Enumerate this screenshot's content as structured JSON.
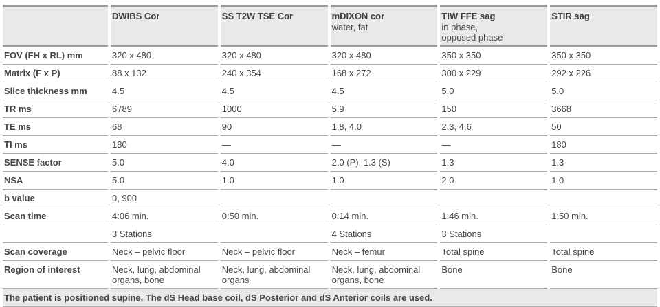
{
  "table": {
    "columns": [
      {
        "title": "",
        "subtitle": ""
      },
      {
        "title": "DWIBS Cor",
        "subtitle": ""
      },
      {
        "title": "SS T2W TSE Cor",
        "subtitle": ""
      },
      {
        "title": "mDIXON cor",
        "subtitle": "water, fat"
      },
      {
        "title": "TIW FFE sag",
        "subtitle": "in phase,\nopposed phase"
      },
      {
        "title": "STIR sag",
        "subtitle": ""
      }
    ],
    "rows": [
      {
        "label": "FOV (FH x RL) mm",
        "values": [
          "320 x 480",
          "320 x 480",
          "320 x 480",
          "350 x 350",
          "350 x 350"
        ]
      },
      {
        "label": "Matrix (F x P)",
        "values": [
          "88 x 132",
          "240 x 354",
          "168 x 272",
          "300 x 229",
          "292 x 226"
        ]
      },
      {
        "label": "Slice thickness mm",
        "values": [
          "4.5",
          "4.5",
          "4.5",
          "5.0",
          "5.0"
        ]
      },
      {
        "label": "TR ms",
        "values": [
          "6789",
          "1000",
          "5.9",
          "150",
          "3668"
        ]
      },
      {
        "label": "TE ms",
        "values": [
          "68",
          "90",
          "1.8, 4.0",
          "2.3, 4.6",
          "50"
        ]
      },
      {
        "label": "TI ms",
        "values": [
          "180",
          "—",
          "—",
          "—",
          "180"
        ]
      },
      {
        "label": "SENSE factor",
        "values": [
          "5.0",
          "4.0",
          "2.0 (P), 1.3 (S)",
          "1.3",
          "1.3"
        ]
      },
      {
        "label": "NSA",
        "values": [
          "5.0",
          "1.0",
          "1.0",
          "2.0",
          "1.0"
        ]
      },
      {
        "label": "b value",
        "values": [
          "0, 900",
          "",
          "",
          "",
          ""
        ]
      },
      {
        "label": "Scan time",
        "values": [
          "4:06 min.",
          "0:50 min.",
          "0:14 min.",
          "1:46 min.",
          "1:50 min."
        ]
      },
      {
        "label": "",
        "values": [
          "3 Stations",
          "",
          "4 Stations",
          "3 Stations",
          ""
        ]
      },
      {
        "label": "Scan coverage",
        "values": [
          "Neck – pelvic floor",
          "Neck – pelvic floor",
          "Neck – femur",
          "Total spine",
          "Total spine"
        ]
      },
      {
        "label": "Region of interest",
        "values": [
          "Neck, lung, abdominal organs, bone",
          "Neck, lung, abdominal organs",
          "Neck, lung, abdominal organs, bone",
          "Bone",
          "Bone"
        ]
      }
    ],
    "footer_note": "The patient is positioned supine. The dS Head base coil, dS Posterior and dS Anterior coils are used."
  },
  "colors": {
    "header_bg": "#e9e9e9",
    "footer_bg": "#e9e9e9",
    "outer_border": "#9a9a9a",
    "row_border": "#a9a9a9",
    "text": "#3c3c3c"
  }
}
